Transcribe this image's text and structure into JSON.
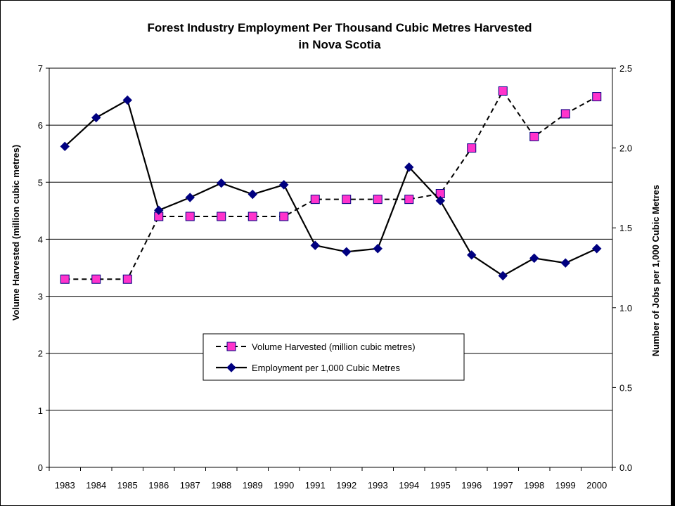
{
  "chart_data": {
    "type": "line",
    "title": "Forest Industry Employment Per Thousand Cubic Metres Harvested",
    "subtitle": "in Nova Scotia",
    "xlabel": "",
    "ylabel_left": "Volume Harvested (million cubic metres)",
    "ylabel_right": "Number of Jobs per 1,000 Cubic Metres",
    "categories": [
      "1983",
      "1984",
      "1985",
      "1986",
      "1987",
      "1988",
      "1989",
      "1990",
      "1991",
      "1992",
      "1993",
      "1994",
      "1995",
      "1996",
      "1997",
      "1998",
      "1999",
      "2000"
    ],
    "ylim_left": [
      0,
      7
    ],
    "yticks_left": [
      "0",
      "1",
      "2",
      "3",
      "4",
      "5",
      "6",
      "7"
    ],
    "ylim_right": [
      0,
      2.5
    ],
    "yticks_right": [
      "0.0",
      "0.5",
      "1.0",
      "1.5",
      "2.0",
      "2.5"
    ],
    "grid": true,
    "legend_position": "center-bottom",
    "series": [
      {
        "name": "Volume Harvested (million cubic metres)",
        "axis": "left",
        "marker": "square",
        "line_style": "dashed",
        "color": "#ff33cc",
        "values": [
          3.3,
          3.3,
          3.3,
          4.4,
          4.4,
          4.4,
          4.4,
          4.4,
          4.7,
          4.7,
          4.7,
          4.7,
          4.8,
          5.6,
          6.6,
          5.8,
          6.2,
          6.5
        ]
      },
      {
        "name": "Employment per 1,000 Cubic Metres",
        "axis": "right",
        "marker": "diamond",
        "line_style": "solid",
        "color": "#000080",
        "values": [
          2.01,
          2.19,
          2.3,
          1.61,
          1.69,
          1.78,
          1.71,
          1.77,
          1.39,
          1.35,
          1.37,
          1.88,
          1.67,
          1.33,
          1.2,
          1.31,
          1.28,
          1.37
        ]
      }
    ]
  }
}
